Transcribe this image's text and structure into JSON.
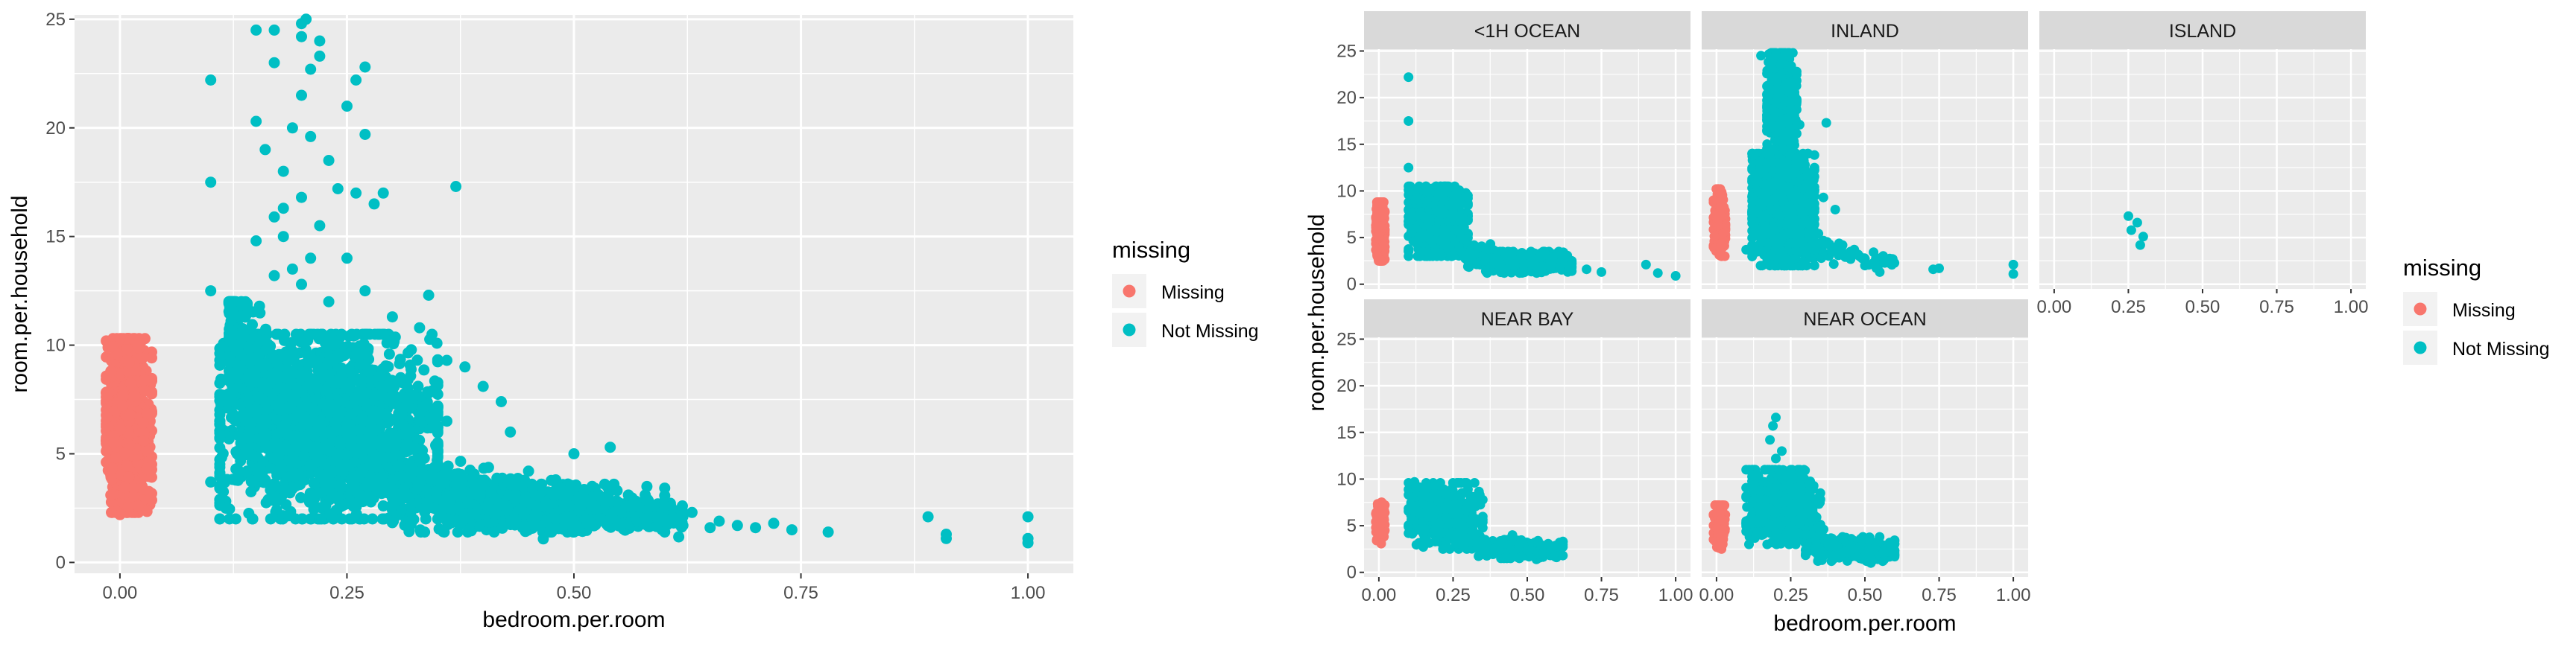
{
  "colors": {
    "missing": "#F8766D",
    "not_missing": "#00BFC4",
    "panel_bg": "#EBEBEB",
    "strip_bg": "#D9D9D9",
    "grid": "#FFFFFF"
  },
  "chart_data": [
    {
      "type": "scatter",
      "xlabel": "bedroom.per.room",
      "ylabel": "room.per.household",
      "xlim": [
        -0.05,
        1.05
      ],
      "ylim": [
        -0.5,
        25.2
      ],
      "x_ticks": [
        "0.00",
        "0.25",
        "0.50",
        "0.75",
        "1.00"
      ],
      "x_tick_values": [
        0,
        0.25,
        0.5,
        0.75,
        1.0
      ],
      "y_ticks": [
        "0",
        "5",
        "10",
        "15",
        "20",
        "25"
      ],
      "y_tick_values": [
        0,
        5,
        10,
        15,
        20,
        25
      ],
      "grid": true,
      "legend": {
        "title": "missing",
        "placement": "right",
        "entries": [
          "Missing",
          "Not Missing"
        ]
      },
      "series": [
        {
          "name": "Missing",
          "color": "#F8766D",
          "cluster": {
            "x_range": [
              -0.015,
              0.035
            ],
            "y_range": [
              2.3,
              10.3
            ]
          },
          "points": [
            [
              0.0,
              10.3
            ],
            [
              0.02,
              10.0
            ],
            [
              -0.01,
              8.8
            ],
            [
              0.01,
              9.2
            ],
            [
              0.0,
              2.2
            ],
            [
              0.02,
              2.6
            ],
            [
              -0.01,
              3.1
            ]
          ]
        },
        {
          "name": "Not Missing",
          "color": "#00BFC4",
          "clusters": [
            {
              "x_range": [
                0.11,
                0.35
              ],
              "y_range": [
                2.0,
                10.5
              ]
            },
            {
              "x_range": [
                0.3,
                0.6
              ],
              "y_range": [
                1.4,
                3.6
              ]
            }
          ],
          "points": [
            [
              0.1,
              22.2
            ],
            [
              0.1,
              17.5
            ],
            [
              0.1,
              12.5
            ],
            [
              0.1,
              3.7
            ],
            [
              0.15,
              24.5
            ],
            [
              0.17,
              24.5
            ],
            [
              0.2,
              24.8
            ],
            [
              0.205,
              25.0
            ],
            [
              0.2,
              24.2
            ],
            [
              0.22,
              24.0
            ],
            [
              0.22,
              23.3
            ],
            [
              0.17,
              23.0
            ],
            [
              0.21,
              22.7
            ],
            [
              0.27,
              22.8
            ],
            [
              0.26,
              22.2
            ],
            [
              0.2,
              21.5
            ],
            [
              0.25,
              21.0
            ],
            [
              0.27,
              19.7
            ],
            [
              0.15,
              20.3
            ],
            [
              0.19,
              20.0
            ],
            [
              0.21,
              19.6
            ],
            [
              0.16,
              19.0
            ],
            [
              0.23,
              18.5
            ],
            [
              0.18,
              18.0
            ],
            [
              0.24,
              17.2
            ],
            [
              0.2,
              16.8
            ],
            [
              0.18,
              16.3
            ],
            [
              0.17,
              15.9
            ],
            [
              0.26,
              17.0
            ],
            [
              0.29,
              17.0
            ],
            [
              0.37,
              17.3
            ],
            [
              0.28,
              16.5
            ],
            [
              0.22,
              15.5
            ],
            [
              0.18,
              15.0
            ],
            [
              0.15,
              14.8
            ],
            [
              0.21,
              14.0
            ],
            [
              0.25,
              14.0
            ],
            [
              0.19,
              13.5
            ],
            [
              0.17,
              13.2
            ],
            [
              0.2,
              12.8
            ],
            [
              0.27,
              12.5
            ],
            [
              0.34,
              12.3
            ],
            [
              0.23,
              12.0
            ],
            [
              0.14,
              11.8
            ],
            [
              0.3,
              11.3
            ],
            [
              0.33,
              10.8
            ],
            [
              0.36,
              9.3
            ],
            [
              0.38,
              9.0
            ],
            [
              0.4,
              8.1
            ],
            [
              0.42,
              7.4
            ],
            [
              0.36,
              6.5
            ],
            [
              0.43,
              6.0
            ],
            [
              0.5,
              5.0
            ],
            [
              0.54,
              5.3
            ],
            [
              0.45,
              4.2
            ],
            [
              0.48,
              3.8
            ],
            [
              0.52,
              3.5
            ],
            [
              0.56,
              3.1
            ],
            [
              0.6,
              2.6
            ],
            [
              0.63,
              2.3
            ],
            [
              0.66,
              1.9
            ],
            [
              0.68,
              1.7
            ],
            [
              0.7,
              1.6
            ],
            [
              0.72,
              1.8
            ],
            [
              0.74,
              1.5
            ],
            [
              0.78,
              1.4
            ],
            [
              0.65,
              1.6
            ],
            [
              0.62,
              1.7
            ],
            [
              0.58,
              1.8
            ],
            [
              0.89,
              2.1
            ],
            [
              0.91,
              1.3
            ],
            [
              0.91,
              1.1
            ],
            [
              1.0,
              2.1
            ],
            [
              1.0,
              1.1
            ],
            [
              1.0,
              0.9
            ],
            [
              0.13,
              3.9
            ],
            [
              0.16,
              3.8
            ],
            [
              0.19,
              3.4
            ],
            [
              0.22,
              3.2
            ],
            [
              0.24,
              3.0
            ],
            [
              0.26,
              2.7
            ],
            [
              0.29,
              2.6
            ],
            [
              0.31,
              2.4
            ],
            [
              0.11,
              2.9
            ],
            [
              0.14,
              4.2
            ],
            [
              0.3,
              5.9
            ],
            [
              0.32,
              7.1
            ],
            [
              0.34,
              7.8
            ]
          ]
        }
      ]
    },
    {
      "type": "scatter",
      "faceted": true,
      "xlabel": "bedroom.per.room",
      "ylabel": "room.per.household",
      "xlim": [
        -0.05,
        1.05
      ],
      "ylim": [
        -0.5,
        25.2
      ],
      "x_ticks": [
        "0.00",
        "0.25",
        "0.50",
        "0.75",
        "1.00"
      ],
      "x_tick_values": [
        0,
        0.25,
        0.5,
        0.75,
        1.0
      ],
      "y_ticks": [
        "0",
        "5",
        "10",
        "15",
        "20",
        "25"
      ],
      "y_tick_values": [
        0,
        5,
        10,
        15,
        20,
        25
      ],
      "grid": true,
      "legend": {
        "title": "missing",
        "placement": "right",
        "entries": [
          "Missing",
          "Not Missing"
        ]
      },
      "facets": [
        {
          "label": "<1H OCEAN",
          "missing_cluster": {
            "x_range": [
              -0.01,
              0.02
            ],
            "y_range": [
              2.5,
              8.8
            ]
          },
          "not_missing_clusters": [
            {
              "x_range": [
                0.1,
                0.3
              ],
              "y_range": [
                3.0,
                10.5
              ]
            },
            {
              "x_range": [
                0.3,
                0.65
              ],
              "y_range": [
                1.2,
                3.5
              ]
            }
          ],
          "not_missing_points": [
            [
              0.1,
              22.2
            ],
            [
              0.1,
              17.5
            ],
            [
              0.1,
              12.5
            ],
            [
              0.22,
              9.0
            ],
            [
              0.25,
              8.0
            ],
            [
              0.7,
              1.6
            ],
            [
              0.75,
              1.3
            ],
            [
              0.9,
              2.1
            ],
            [
              0.94,
              1.2
            ],
            [
              1.0,
              0.9
            ],
            [
              0.55,
              1.9
            ]
          ]
        },
        {
          "label": "INLAND",
          "missing_cluster": {
            "x_range": [
              -0.01,
              0.03
            ],
            "y_range": [
              3.0,
              10.2
            ]
          },
          "not_missing_clusters": [
            {
              "x_range": [
                0.12,
                0.33
              ],
              "y_range": [
                2.0,
                14.0
              ]
            },
            {
              "x_range": [
                0.17,
                0.27
              ],
              "y_range": [
                13.0,
                24.8
              ]
            }
          ],
          "not_missing_points": [
            [
              0.15,
              24.5
            ],
            [
              0.2,
              24.8
            ],
            [
              0.22,
              24.0
            ],
            [
              0.27,
              22.8
            ],
            [
              0.28,
              17.1
            ],
            [
              0.37,
              17.3
            ],
            [
              0.36,
              9.3
            ],
            [
              0.4,
              8.0
            ],
            [
              0.38,
              4.3
            ],
            [
              0.5,
              2.0
            ],
            [
              0.55,
              1.3
            ],
            [
              0.73,
              1.6
            ],
            [
              0.75,
              1.7
            ],
            [
              1.0,
              2.1
            ],
            [
              1.0,
              1.1
            ],
            [
              0.1,
              3.7
            ],
            [
              0.31,
              10.5
            ],
            [
              0.33,
              7.8
            ]
          ]
        },
        {
          "label": "ISLAND",
          "missing_cluster": null,
          "not_missing_clusters": [],
          "not_missing_points": [
            [
              0.25,
              7.3
            ],
            [
              0.28,
              6.6
            ],
            [
              0.26,
              5.8
            ],
            [
              0.3,
              5.1
            ],
            [
              0.29,
              4.2
            ]
          ]
        },
        {
          "label": "NEAR BAY",
          "missing_cluster": {
            "x_range": [
              -0.01,
              0.02
            ],
            "y_range": [
              3.0,
              7.5
            ]
          },
          "not_missing_clusters": [
            {
              "x_range": [
                0.1,
                0.35
              ],
              "y_range": [
                2.5,
                9.6
              ]
            },
            {
              "x_range": [
                0.3,
                0.62
              ],
              "y_range": [
                1.5,
                3.5
              ]
            }
          ],
          "not_missing_points": [
            [
              0.12,
              9.7
            ],
            [
              0.3,
              8.9
            ],
            [
              0.34,
              8.3
            ],
            [
              0.45,
              4.0
            ],
            [
              0.55,
              2.0
            ],
            [
              0.6,
              1.7
            ],
            [
              0.62,
              1.8
            ]
          ]
        },
        {
          "label": "NEAR OCEAN",
          "missing_cluster": {
            "x_range": [
              -0.01,
              0.03
            ],
            "y_range": [
              2.5,
              7.2
            ]
          },
          "not_missing_clusters": [
            {
              "x_range": [
                0.1,
                0.35
              ],
              "y_range": [
                3.0,
                11.0
              ]
            },
            {
              "x_range": [
                0.3,
                0.6
              ],
              "y_range": [
                1.2,
                3.8
              ]
            }
          ],
          "not_missing_points": [
            [
              0.2,
              16.6
            ],
            [
              0.19,
              15.7
            ],
            [
              0.18,
              14.2
            ],
            [
              0.22,
              13.0
            ],
            [
              0.2,
              12.2
            ],
            [
              0.25,
              11.0
            ],
            [
              0.13,
              10.5
            ],
            [
              0.58,
              2.2
            ],
            [
              0.56,
              1.2
            ],
            [
              0.52,
              1.0
            ]
          ]
        }
      ]
    }
  ]
}
